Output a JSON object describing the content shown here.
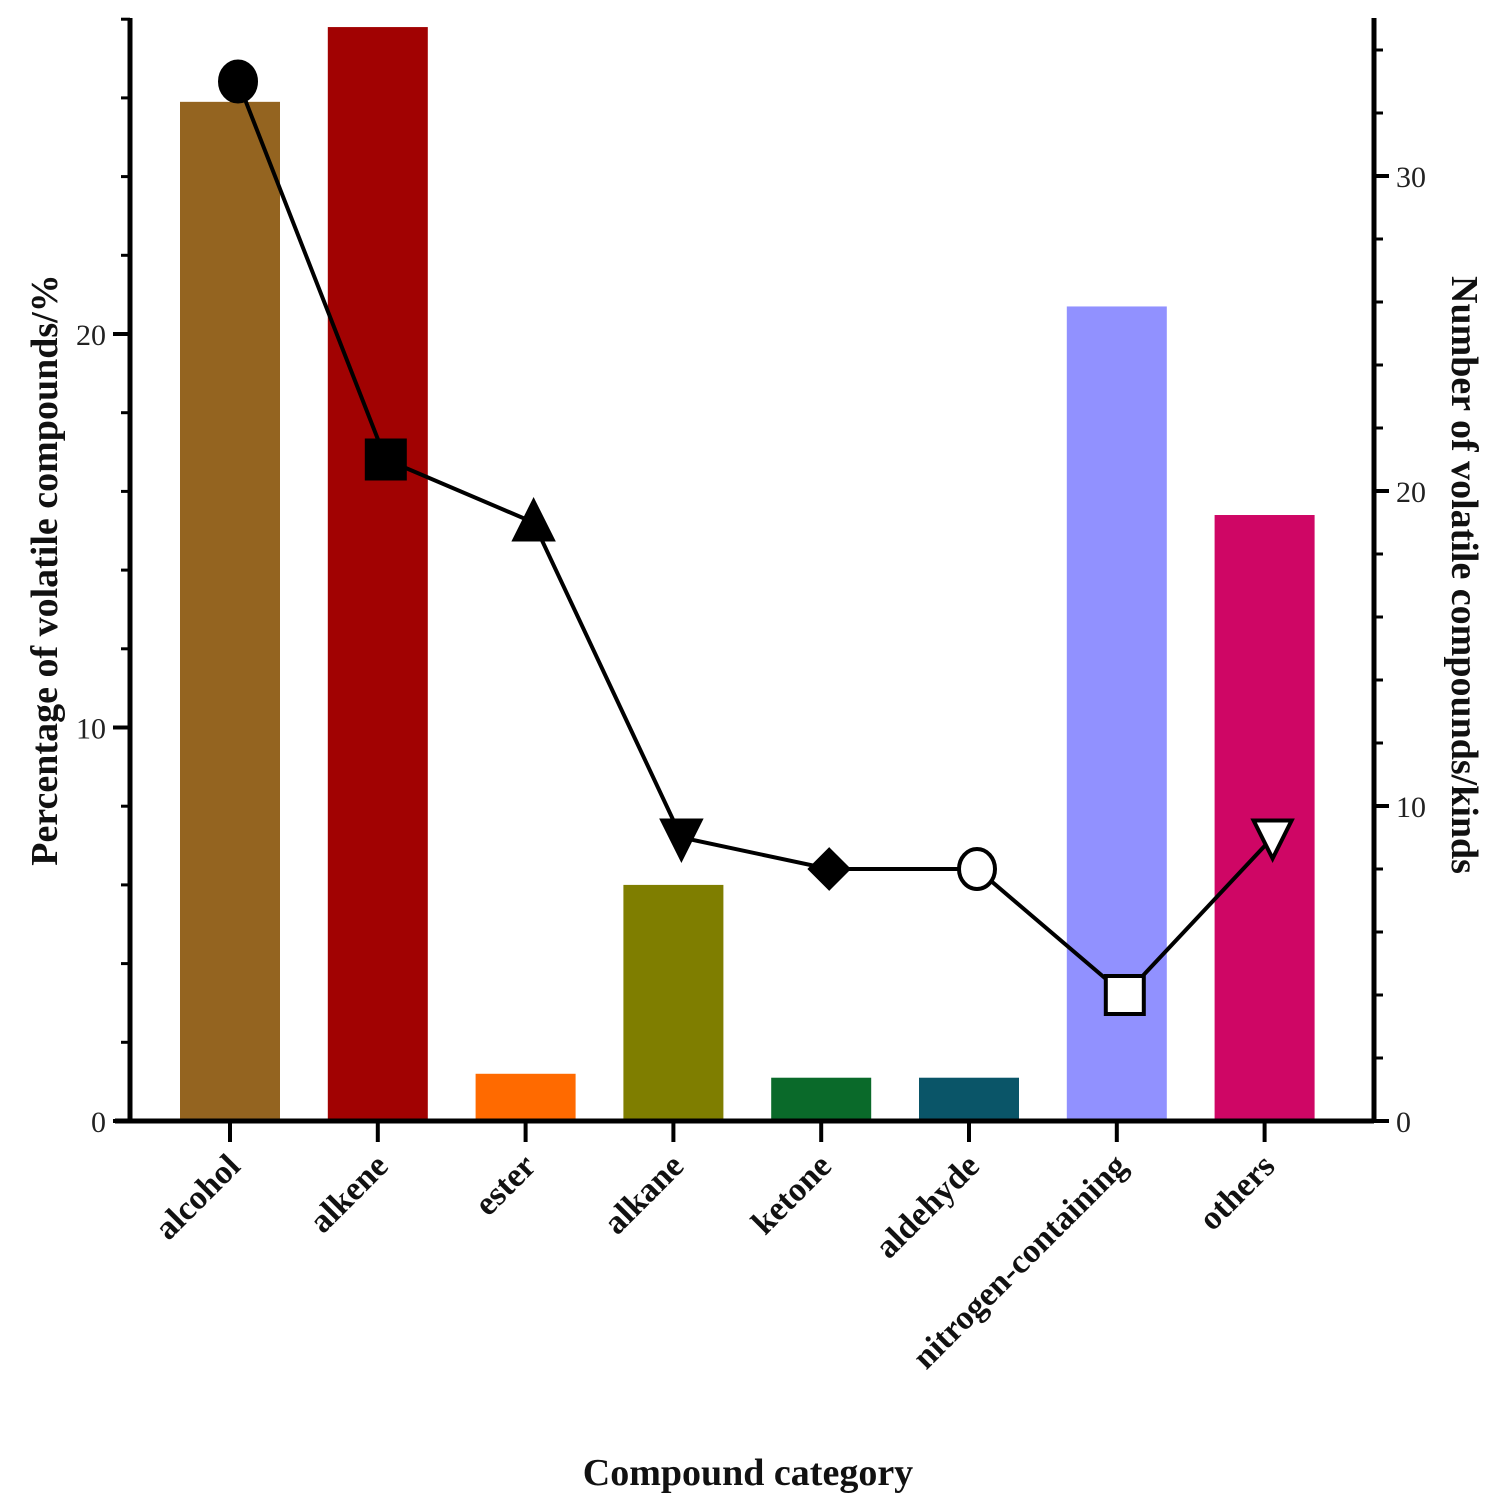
{
  "chart_data": {
    "type": "bar",
    "title": "",
    "xlabel": "Compound category",
    "ylabel": "Percentage of volatile compounds/%",
    "y2label": "Number of volatile compounds/kinds",
    "categories": [
      "alcohol",
      "alkene",
      "ester",
      "alkane",
      "ketone",
      "aldehyde",
      "nitrogen-containing",
      "others"
    ],
    "ylim": [
      0,
      28
    ],
    "y2lim": [
      0,
      35
    ],
    "yticks": [
      0,
      10,
      20
    ],
    "y2ticks": [
      0,
      10,
      20,
      30
    ],
    "series": [
      {
        "name": "Percentage of volatile compounds/%",
        "kind": "bar",
        "axis": "left",
        "values": [
          25.9,
          27.8,
          1.2,
          6.0,
          1.1,
          1.1,
          20.7,
          15.4
        ],
        "colors": [
          "#946420",
          "#a10202",
          "#ff6a00",
          "#7f7e00",
          "#0a6a2a",
          "#0a5568",
          "#9191ff",
          "#cf0665"
        ]
      },
      {
        "name": "Number of volatile compounds/kinds",
        "kind": "line",
        "axis": "right",
        "values": [
          33,
          21,
          19,
          9,
          8,
          8,
          4,
          9
        ],
        "markers": [
          "circle-filled",
          "square-filled",
          "triangle-up-filled",
          "triangle-down-filled",
          "diamond-filled",
          "circle-open",
          "square-open",
          "triangle-down-open"
        ],
        "color": "#000000"
      }
    ]
  }
}
